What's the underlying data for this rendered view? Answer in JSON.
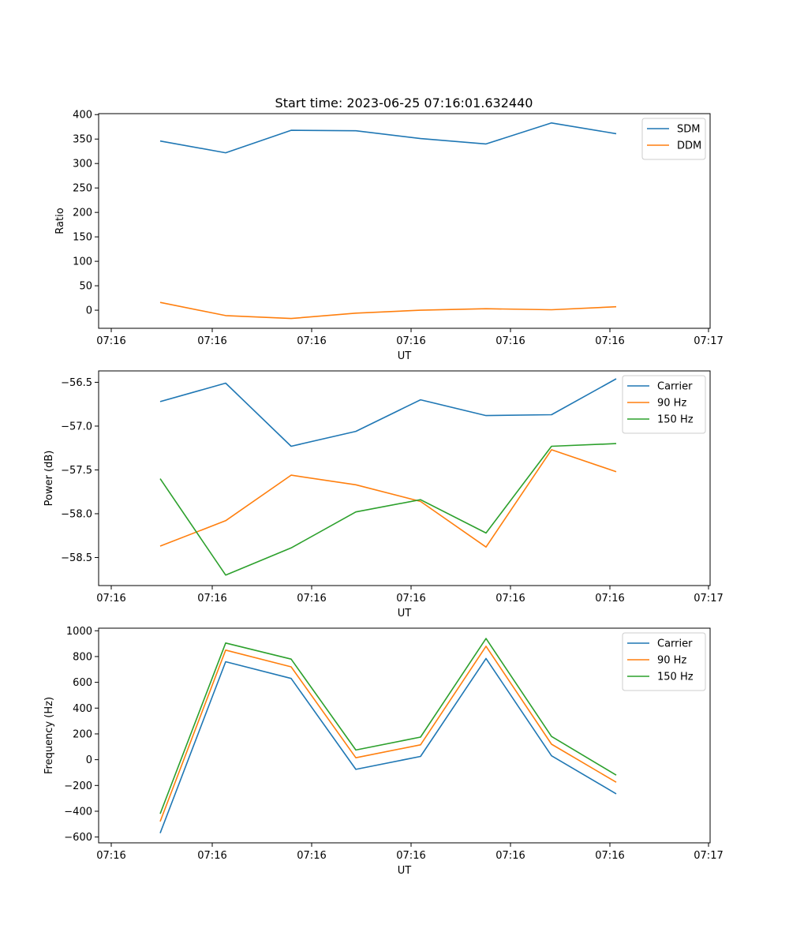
{
  "figure_title": "Start time: 2023-06-25 07:16:01.632440",
  "chart_data": [
    {
      "type": "line",
      "title": "Start time: 2023-06-25 07:16:01.632440",
      "xlabel": "UT",
      "ylabel": "Ratio",
      "x_ticks": [
        "07:16",
        "07:16",
        "07:16",
        "07:16",
        "07:16",
        "07:16",
        "07:17"
      ],
      "y_ticks": [
        "0",
        "50",
        "100",
        "150",
        "200",
        "250",
        "300",
        "350",
        "400"
      ],
      "y_tick_values": [
        0,
        50,
        100,
        150,
        200,
        250,
        300,
        350,
        400
      ],
      "ylim": [
        -37,
        402
      ],
      "legend_position": "top-right",
      "grid": false,
      "series": [
        {
          "name": "SDM",
          "color": "#1f77b4",
          "values": [
            346,
            322,
            368,
            367,
            351,
            340,
            383,
            361
          ]
        },
        {
          "name": "DDM",
          "color": "#ff7f0e",
          "values": [
            16,
            -11,
            -17,
            -6,
            0,
            3,
            1,
            7
          ]
        }
      ]
    },
    {
      "type": "line",
      "xlabel": "UT",
      "ylabel": "Power (dB)",
      "x_ticks": [
        "07:16",
        "07:16",
        "07:16",
        "07:16",
        "07:16",
        "07:16",
        "07:17"
      ],
      "y_ticks": [
        "−58.5",
        "−58.0",
        "−57.5",
        "−57.0",
        "−56.5"
      ],
      "y_tick_values": [
        -58.5,
        -58.0,
        -57.5,
        -57.0,
        -56.5
      ],
      "ylim": [
        -58.82,
        -56.37
      ],
      "legend_position": "top-right",
      "grid": false,
      "series": [
        {
          "name": "Carrier",
          "color": "#1f77b4",
          "values": [
            -56.72,
            -56.51,
            -57.23,
            -57.06,
            -56.7,
            -56.88,
            -56.87,
            -56.46
          ]
        },
        {
          "name": "90 Hz",
          "color": "#ff7f0e",
          "values": [
            -58.37,
            -58.08,
            -57.56,
            -57.67,
            -57.86,
            -58.38,
            -57.27,
            -57.52
          ]
        },
        {
          "name": "150 Hz",
          "color": "#2ca02c",
          "values": [
            -57.6,
            -58.7,
            -58.39,
            -57.98,
            -57.84,
            -58.22,
            -57.23,
            -57.2
          ]
        }
      ]
    },
    {
      "type": "line",
      "xlabel": "UT",
      "ylabel": "Frequency (Hz)",
      "x_ticks": [
        "07:16",
        "07:16",
        "07:16",
        "07:16",
        "07:16",
        "07:16",
        "07:17"
      ],
      "y_ticks": [
        "−600",
        "−400",
        "−200",
        "0",
        "200",
        "400",
        "600",
        "800",
        "1000"
      ],
      "y_tick_values": [
        -600,
        -400,
        -200,
        0,
        200,
        400,
        600,
        800,
        1000
      ],
      "ylim": [
        -645,
        1020
      ],
      "legend_position": "top-right",
      "grid": false,
      "series": [
        {
          "name": "Carrier",
          "color": "#1f77b4",
          "values": [
            -570,
            760,
            630,
            -75,
            25,
            785,
            30,
            -265
          ]
        },
        {
          "name": "90 Hz",
          "color": "#ff7f0e",
          "values": [
            -480,
            850,
            720,
            15,
            115,
            880,
            120,
            -175
          ]
        },
        {
          "name": "150 Hz",
          "color": "#2ca02c",
          "values": [
            -420,
            905,
            780,
            75,
            175,
            940,
            180,
            -120
          ]
        }
      ]
    }
  ]
}
